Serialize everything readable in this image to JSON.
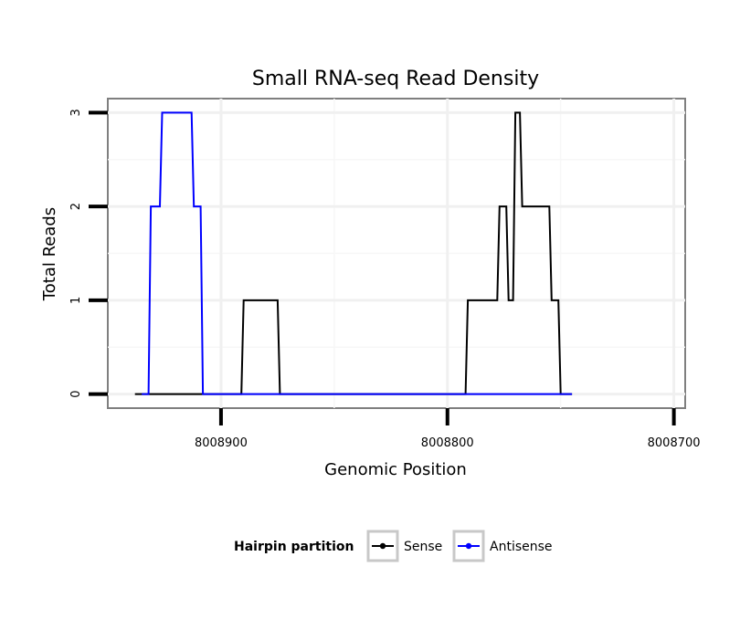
{
  "chart_data": {
    "type": "line",
    "title": "Small RNA-seq Read Density",
    "xlabel": "Genomic Position",
    "ylabel": "Total Reads",
    "xlim": [
      8008950,
      8008695
    ],
    "ylim": [
      -0.15,
      3.15
    ],
    "x_reversed": true,
    "x_ticks": [
      8008900,
      8008800,
      8008700
    ],
    "x_tick_labels": [
      "8008900",
      "8008800",
      "8008700"
    ],
    "y_ticks": [
      0,
      1,
      2,
      3
    ],
    "y_tick_labels": [
      "0",
      "1",
      "2",
      "3"
    ],
    "grid": true,
    "legend": {
      "title": "Hairpin partition",
      "position": "bottom",
      "entries": [
        "Sense",
        "Antisense"
      ]
    },
    "series": [
      {
        "name": "Sense",
        "color": "#000000",
        "x": [
          8008938,
          8008891,
          8008890,
          8008875,
          8008874,
          8008792,
          8008791,
          8008778,
          8008777,
          8008774,
          8008773,
          8008771,
          8008770,
          8008768,
          8008767,
          8008755,
          8008754,
          8008751,
          8008750,
          8008748,
          8008747,
          8008745
        ],
        "y": [
          0,
          0,
          1,
          1,
          0,
          0,
          1,
          1,
          2,
          2,
          1,
          1,
          3,
          3,
          2,
          2,
          1,
          1,
          0,
          0,
          0,
          0
        ]
      },
      {
        "name": "Antisense",
        "color": "#0000ff",
        "x": [
          8008935,
          8008932,
          8008931,
          8008927,
          8008926,
          8008913,
          8008912,
          8008909,
          8008908,
          8008908,
          8008907,
          8008791,
          8008745
        ],
        "y": [
          0,
          0,
          2,
          2,
          3,
          3,
          2,
          2,
          0,
          0,
          0,
          0,
          0
        ]
      }
    ]
  }
}
